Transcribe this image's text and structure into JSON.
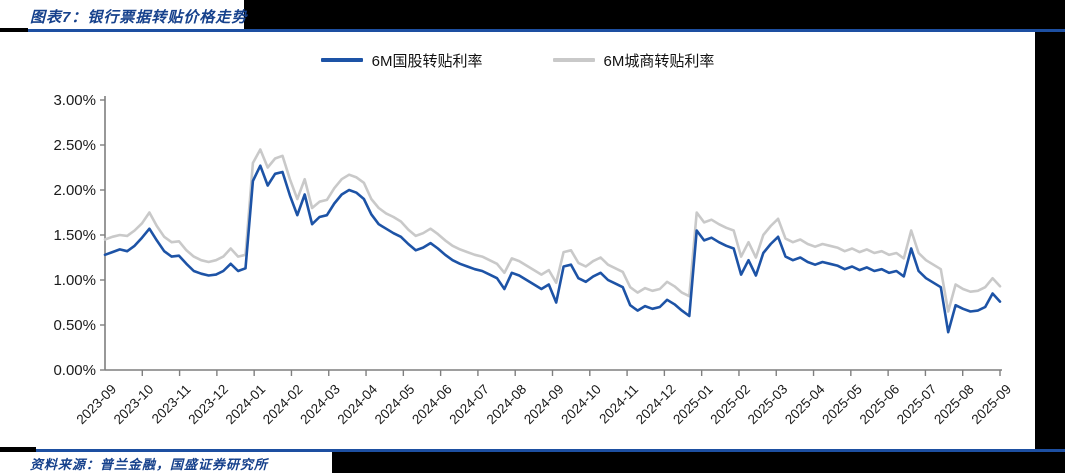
{
  "header": {
    "title": "图表7：银行票据转贴价格走势"
  },
  "footer": {
    "source": "资料来源：普兰金融，国盛证券研究所"
  },
  "colors": {
    "accent_rule_blue": "#1D4FA1",
    "text_blue": "#16418C",
    "series_blue": "#1D53A6",
    "series_gray": "#C9C9C9",
    "axis_gray": "#7F7F7F",
    "label_black": "#1A1A1A",
    "background_black": "#000000",
    "card_white": "#FFFFFF"
  },
  "legend": [
    {
      "label": "6M国股转贴利率",
      "color": "#1D53A6"
    },
    {
      "label": "6M城商转贴利率",
      "color": "#C9C9C9"
    }
  ],
  "chart_data": {
    "type": "line",
    "title": "银行票据转贴价格走势",
    "unit": "%",
    "grid": false,
    "legend_position": "top-center",
    "ylim": [
      0,
      3
    ],
    "y_ticks": [
      "0.00%",
      "0.50%",
      "1.00%",
      "1.50%",
      "2.00%",
      "2.50%",
      "3.00%"
    ],
    "x_labels": [
      "2023-09",
      "2023-10",
      "2023-11",
      "2023-12",
      "2024-01",
      "2024-02",
      "2024-03",
      "2024-04",
      "2024-05",
      "2024-06",
      "2024-07",
      "2024-08",
      "2024-09",
      "2024-10",
      "2024-11",
      "2024-12",
      "2025-01",
      "2025-02",
      "2025-03",
      "2025-04",
      "2025-05",
      "2025-06",
      "2025-07",
      "2025-08",
      "2025-09"
    ],
    "series": [
      {
        "name": "6M国股转贴利率",
        "color": "#1D53A6",
        "values": [
          1.28,
          1.31,
          1.34,
          1.32,
          1.38,
          1.47,
          1.57,
          1.44,
          1.32,
          1.26,
          1.27,
          1.18,
          1.1,
          1.07,
          1.05,
          1.06,
          1.1,
          1.18,
          1.1,
          1.13,
          2.1,
          2.27,
          2.05,
          2.18,
          2.2,
          1.94,
          1.72,
          1.95,
          1.62,
          1.7,
          1.72,
          1.85,
          1.95,
          2.0,
          1.97,
          1.9,
          1.73,
          1.62,
          1.57,
          1.52,
          1.48,
          1.4,
          1.33,
          1.36,
          1.41,
          1.35,
          1.28,
          1.22,
          1.18,
          1.15,
          1.12,
          1.1,
          1.06,
          1.02,
          0.9,
          1.08,
          1.05,
          1.0,
          0.95,
          0.9,
          0.95,
          0.75,
          1.15,
          1.17,
          1.02,
          0.98,
          1.04,
          1.08,
          1.0,
          0.96,
          0.92,
          0.72,
          0.66,
          0.71,
          0.68,
          0.7,
          0.78,
          0.73,
          0.66,
          0.6,
          1.55,
          1.44,
          1.47,
          1.42,
          1.38,
          1.35,
          1.06,
          1.22,
          1.05,
          1.3,
          1.4,
          1.48,
          1.26,
          1.22,
          1.25,
          1.2,
          1.17,
          1.2,
          1.18,
          1.16,
          1.12,
          1.15,
          1.11,
          1.14,
          1.1,
          1.12,
          1.08,
          1.1,
          1.04,
          1.35,
          1.1,
          1.02,
          0.97,
          0.92,
          0.42,
          0.72,
          0.68,
          0.65,
          0.66,
          0.7,
          0.85,
          0.76
        ]
      },
      {
        "name": "6M城商转贴利率",
        "color": "#C9C9C9",
        "values": [
          1.45,
          1.48,
          1.5,
          1.49,
          1.55,
          1.63,
          1.75,
          1.6,
          1.48,
          1.42,
          1.43,
          1.33,
          1.26,
          1.22,
          1.2,
          1.22,
          1.26,
          1.35,
          1.26,
          1.28,
          2.3,
          2.45,
          2.25,
          2.35,
          2.38,
          2.12,
          1.9,
          2.12,
          1.8,
          1.87,
          1.89,
          2.02,
          2.12,
          2.17,
          2.14,
          2.08,
          1.9,
          1.8,
          1.74,
          1.7,
          1.65,
          1.56,
          1.49,
          1.52,
          1.57,
          1.51,
          1.44,
          1.38,
          1.34,
          1.31,
          1.28,
          1.26,
          1.22,
          1.18,
          1.08,
          1.24,
          1.21,
          1.16,
          1.11,
          1.06,
          1.11,
          0.97,
          1.31,
          1.33,
          1.19,
          1.15,
          1.21,
          1.25,
          1.17,
          1.13,
          1.09,
          0.92,
          0.86,
          0.91,
          0.88,
          0.9,
          0.98,
          0.93,
          0.86,
          0.82,
          1.75,
          1.64,
          1.67,
          1.62,
          1.58,
          1.55,
          1.26,
          1.42,
          1.25,
          1.5,
          1.6,
          1.68,
          1.46,
          1.42,
          1.45,
          1.4,
          1.37,
          1.4,
          1.38,
          1.36,
          1.32,
          1.35,
          1.31,
          1.34,
          1.3,
          1.32,
          1.28,
          1.3,
          1.24,
          1.55,
          1.3,
          1.22,
          1.17,
          1.12,
          0.65,
          0.95,
          0.9,
          0.87,
          0.88,
          0.92,
          1.02,
          0.93
        ]
      }
    ]
  }
}
